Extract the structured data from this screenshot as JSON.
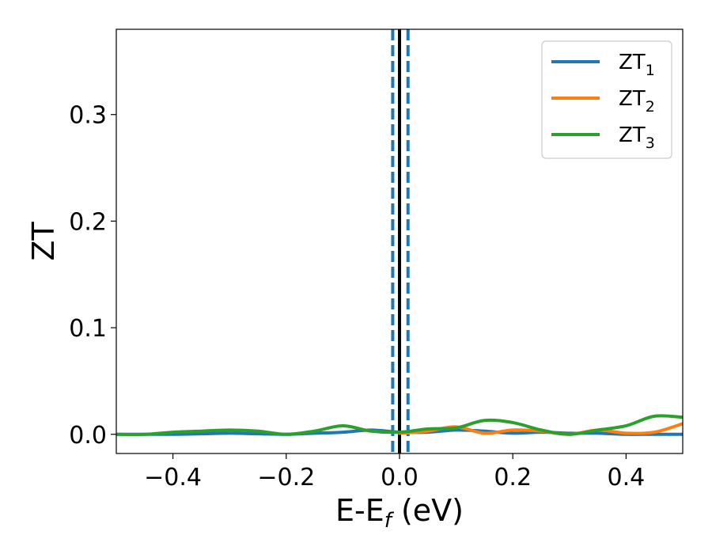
{
  "chart_data": {
    "type": "line",
    "xlabel": {
      "main": "E-E",
      "sub": "f",
      "unit": " (eV)"
    },
    "ylabel": "ZT",
    "xlim": [
      -0.5,
      0.5
    ],
    "ylim": [
      -0.018,
      0.38
    ],
    "x_ticks": [
      -0.4,
      -0.2,
      0.0,
      0.2,
      0.4
    ],
    "x_tick_labels": [
      "−0.4",
      "−0.2",
      "0.0",
      "0.2",
      "0.4"
    ],
    "y_ticks": [
      0.0,
      0.1,
      0.2,
      0.3
    ],
    "y_tick_labels": [
      "0.0",
      "0.1",
      "0.2",
      "0.3"
    ],
    "legend_position": "top-right",
    "x": [
      -0.5,
      -0.45,
      -0.4,
      -0.35,
      -0.3,
      -0.25,
      -0.2,
      -0.15,
      -0.1,
      -0.05,
      0.0,
      0.05,
      0.1,
      0.15,
      0.2,
      0.25,
      0.3,
      0.35,
      0.4,
      0.45,
      0.5
    ],
    "series": [
      {
        "name": "ZT",
        "name_sub": "1",
        "color": "#1f77b4",
        "values": [
          0.0,
          0.0,
          0.0,
          0.0005,
          0.001,
          0.0005,
          0.0,
          0.001,
          0.002,
          0.004,
          0.002,
          0.002,
          0.004,
          0.003,
          0.001,
          0.002,
          0.001,
          0.001,
          0.0,
          0.0,
          0.0
        ]
      },
      {
        "name": "ZT",
        "name_sub": "2",
        "color": "#ff7f0e",
        "values": [
          null,
          null,
          null,
          null,
          null,
          null,
          null,
          null,
          null,
          null,
          0.001,
          0.003,
          0.007,
          0.001,
          0.004,
          0.003,
          0.0,
          0.004,
          0.001,
          0.002,
          0.01
        ]
      },
      {
        "name": "ZT",
        "name_sub": "3",
        "color": "#2ca02c",
        "values": [
          0.0,
          0.0,
          0.002,
          0.003,
          0.004,
          0.003,
          0.0,
          0.003,
          0.008,
          0.003,
          0.002,
          0.005,
          0.006,
          0.013,
          0.011,
          0.004,
          0.0,
          0.004,
          0.008,
          0.017,
          0.016
        ]
      }
    ],
    "vertical_lines": [
      {
        "x": 0.0,
        "style": "solid",
        "color": "#000000"
      },
      {
        "x": -0.012,
        "style": "dashed",
        "color": "#1f77b4"
      },
      {
        "x": 0.015,
        "style": "dashed",
        "color": "#1f77b4"
      }
    ],
    "grid": false
  }
}
